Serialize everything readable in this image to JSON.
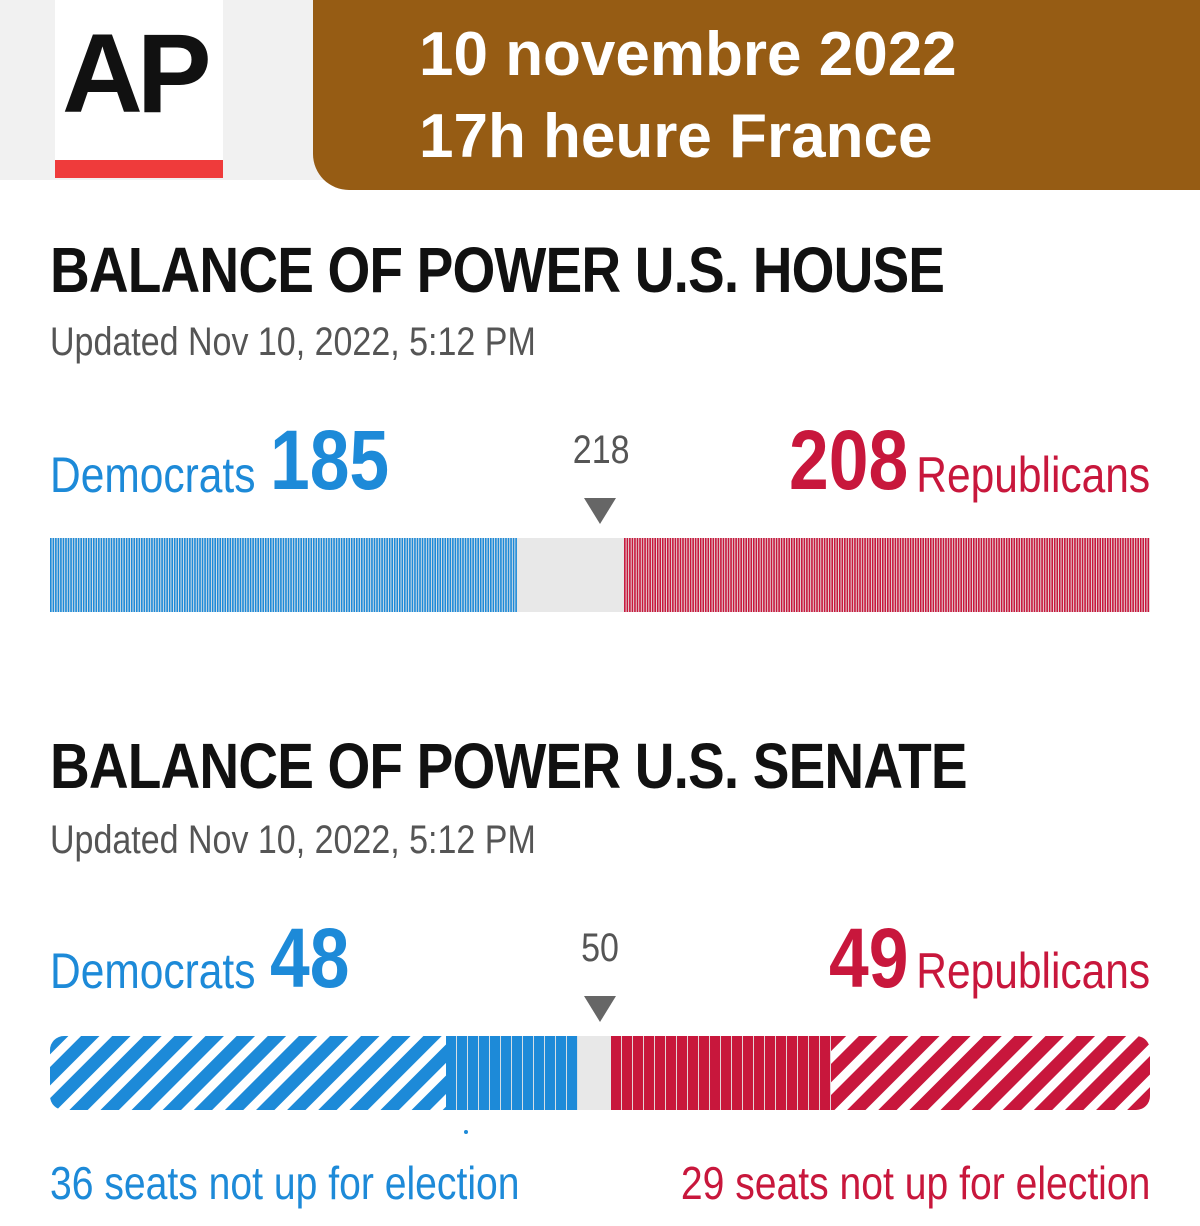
{
  "header": {
    "logo_text": "AP",
    "date_line1": "10 novembre 2022",
    "date_line2": "17h heure France"
  },
  "colors": {
    "democrats": "#1d8ad8",
    "republicans": "#c8173c",
    "undecided": "#e8e8e8",
    "date_band": "#965c14",
    "logo_bar": "#ef3b3b"
  },
  "chart_data": [
    {
      "type": "bar",
      "title": "BALANCE OF POWER U.S. HOUSE",
      "subtitle": "Updated Nov 10, 2022, 5:12 PM",
      "total_seats": 435,
      "majority_threshold": 218,
      "series": [
        {
          "name": "Democrats",
          "values": [
            185
          ]
        },
        {
          "name": "Republicans",
          "values": [
            208
          ]
        }
      ],
      "undecided": 42
    },
    {
      "type": "bar",
      "title": "BALANCE OF POWER U.S. SENATE",
      "subtitle": "Updated Nov 10, 2022, 5:12 PM",
      "total_seats": 100,
      "majority_threshold": 50,
      "series": [
        {
          "name": "Democrats",
          "values": [
            48
          ],
          "not_up_for_election": 36
        },
        {
          "name": "Republicans",
          "values": [
            49
          ],
          "not_up_for_election": 29
        }
      ],
      "undecided": 3,
      "footnotes": {
        "democrats": "36 seats not up for election",
        "republicans": "29 seats not up for election"
      }
    }
  ]
}
